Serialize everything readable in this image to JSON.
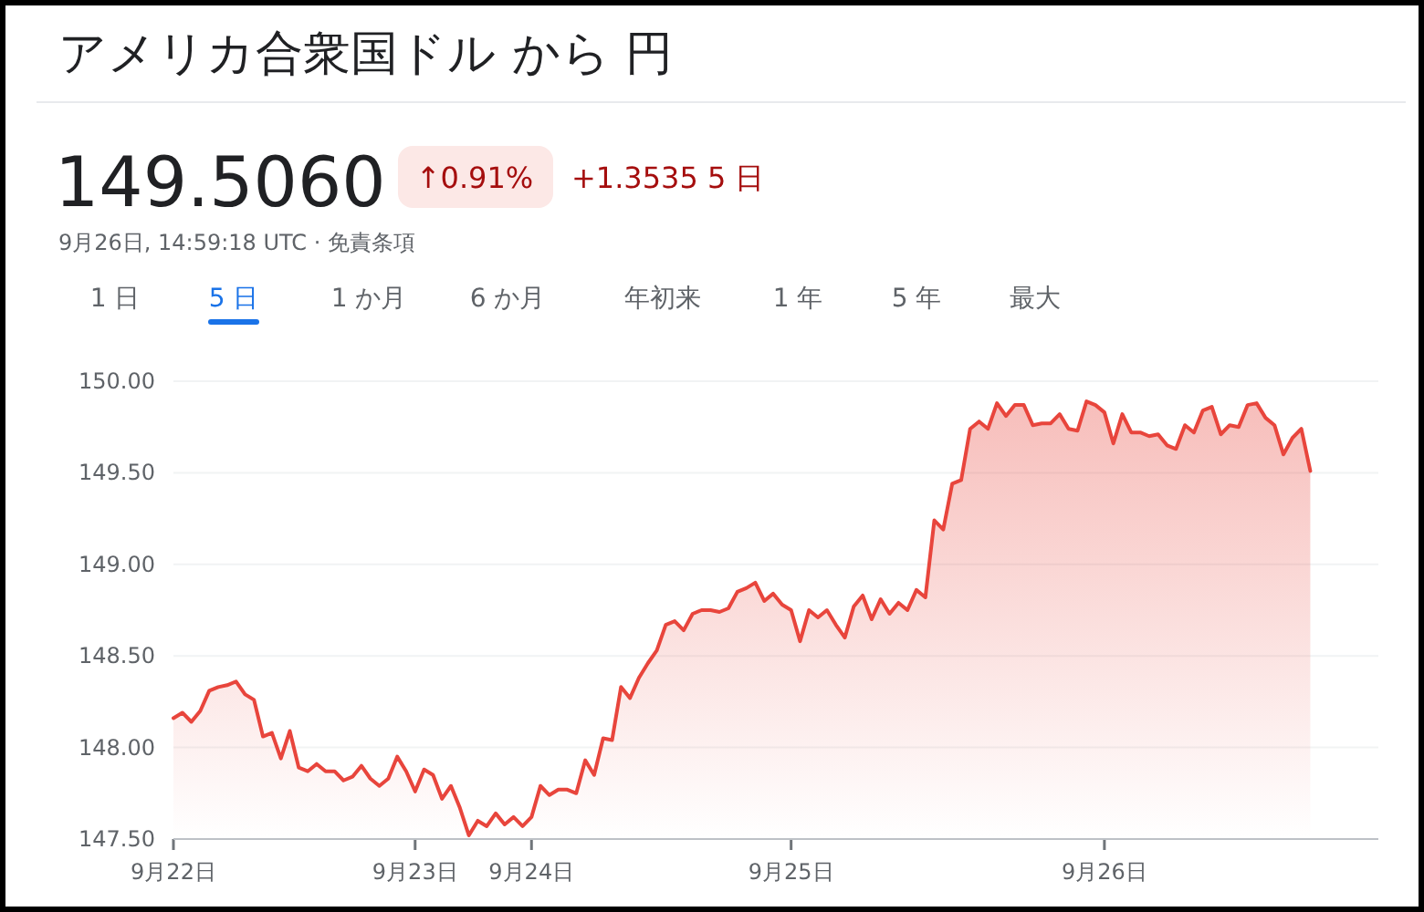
{
  "chart_data": {
    "type": "area",
    "title": "アメリカ合衆国ドル から 円",
    "subtitle": "149.5060",
    "annotations": [
      "↑0.91%",
      "+1.3535 5 日",
      "9月26日, 14:59:18 UTC · 免責条項",
      "1 日",
      "5 日",
      "1 か月",
      "6 か月",
      "年初来",
      "1 年",
      "5 年",
      "最大"
    ],
    "categories": [
      "9月22日",
      null,
      null,
      null,
      null,
      null,
      null,
      null,
      null,
      null,
      null,
      null,
      null,
      null,
      null,
      null,
      null,
      null,
      null,
      null,
      null,
      null,
      null,
      null,
      null,
      null,
      null,
      "9月23日",
      null,
      null,
      null,
      null,
      null,
      null,
      null,
      null,
      null,
      null,
      null,
      null,
      "9月24日",
      null,
      null,
      null,
      null,
      null,
      null,
      null,
      null,
      null,
      null,
      null,
      null,
      null,
      null,
      null,
      null,
      null,
      null,
      null,
      null,
      null,
      null,
      null,
      null,
      null,
      null,
      null,
      null,
      "9月25日",
      null,
      null,
      null,
      null,
      null,
      null,
      null,
      null,
      null,
      null,
      null,
      null,
      null,
      null,
      null,
      null,
      null,
      null,
      null,
      null,
      null,
      null,
      null,
      null,
      null,
      null,
      null,
      null,
      null,
      null,
      null,
      null,
      null,
      null,
      "9月26日",
      null,
      null,
      null,
      null,
      null,
      null,
      null,
      null,
      null,
      null,
      null,
      null,
      null,
      null,
      null,
      null,
      null,
      null,
      null,
      null,
      null,
      null,
      null
    ],
    "series": [
      {
        "color": "#e8453c",
        "values": [
          148.16,
          148.19,
          148.14,
          148.2,
          148.31,
          148.33,
          148.34,
          148.36,
          148.29,
          148.26,
          148.06,
          148.08,
          147.94,
          148.09,
          147.89,
          147.87,
          147.91,
          147.87,
          147.87,
          147.82,
          147.84,
          147.9,
          147.83,
          147.79,
          147.83,
          147.95,
          147.87,
          147.76,
          147.88,
          147.85,
          147.72,
          147.79,
          147.67,
          147.52,
          147.6,
          147.57,
          147.64,
          147.58,
          147.62,
          147.57,
          147.62,
          147.79,
          147.74,
          147.77,
          147.77,
          147.75,
          147.93,
          147.85,
          148.05,
          148.04,
          148.33,
          148.27,
          148.38,
          148.46,
          148.53,
          148.67,
          148.69,
          148.64,
          148.73,
          148.75,
          148.75,
          148.74,
          148.76,
          148.85,
          148.87,
          148.9,
          148.8,
          148.84,
          148.78,
          148.75,
          148.58,
          148.75,
          148.71,
          148.75,
          148.67,
          148.6,
          148.77,
          148.83,
          148.7,
          148.81,
          148.73,
          148.79,
          148.75,
          148.86,
          148.82,
          149.24,
          149.19,
          149.44,
          149.46,
          149.74,
          149.78,
          149.74,
          149.88,
          149.81,
          149.87,
          149.87,
          149.76,
          149.77,
          149.77,
          149.82,
          149.74,
          149.73,
          149.89,
          149.87,
          149.83,
          149.66,
          149.82,
          149.72,
          149.72,
          149.7,
          149.71,
          149.65,
          149.63,
          149.76,
          149.72,
          149.84,
          149.86,
          149.71,
          149.76,
          149.75,
          149.87,
          149.88,
          149.8,
          149.76,
          149.6,
          149.69,
          149.74,
          149.51
        ]
      }
    ],
    "ylim": [
      147.5,
      150.0
    ],
    "yticks": [
      {
        "value": 147.5,
        "label": "147.50"
      },
      {
        "value": 148.0,
        "label": "148.00"
      },
      {
        "value": 148.5,
        "label": "148.50"
      },
      {
        "value": 149.0,
        "label": "149.00"
      },
      {
        "value": 149.5,
        "label": "149.50"
      },
      {
        "value": 150.0,
        "label": "150.00"
      }
    ],
    "grid": "y"
  }
}
